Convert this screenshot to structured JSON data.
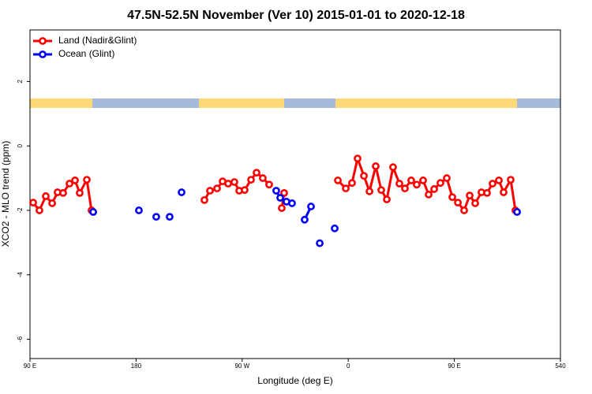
{
  "chart_data": {
    "type": "line",
    "title": "47.5N-52.5N November (Ver 10)   2015-01-01 to 2020-12-18",
    "x_label": "Longitude (deg E)",
    "y_label": "XCO2 - MLO trend (ppm)",
    "xlim": [
      90,
      540
    ],
    "ylim": [
      -6.6,
      3.6
    ],
    "xticks": [
      {
        "value": 90,
        "label": "90 E"
      },
      180,
      {
        "value": 270,
        "label": "90 W"
      },
      {
        "value": 360,
        "label": "0"
      },
      {
        "value": 450,
        "label": "90 E"
      },
      540
    ],
    "yticks": [
      2,
      0,
      -2,
      -4,
      -6
    ],
    "legend": "topleft",
    "series": [
      {
        "name": "Land (Nadir&Glint)",
        "color": "#ff0000",
        "x": [
          92.7,
          98.0,
          103.4,
          108.8,
          113.4,
          118.1,
          123.5,
          128.2,
          132.2,
          138.2,
          142.2,
          null,
          238.0,
          242.7,
          248.7,
          253.4,
          258.1,
          263.4,
          267.5,
          272.1,
          277.5,
          282.2,
          287.5,
          292.9,
          null,
          303.6,
          305.6,
          null,
          351.2,
          357.9,
          363.2,
          367.9,
          373.3,
          378.0,
          383.3,
          388.0,
          392.7,
          398.0,
          403.4,
          408.1,
          413.4,
          418.1,
          423.5,
          428.2,
          432.9,
          438.2,
          443.6,
          448.3,
          453.0,
          458.3,
          463.0,
          467.7,
          473.0,
          477.7,
          482.4,
          487.8,
          491.8,
          497.8,
          501.8
        ],
        "values": [
          -1.76,
          -2.0,
          -1.56,
          -1.78,
          -1.44,
          -1.46,
          -1.17,
          -1.07,
          -1.46,
          -1.05,
          -2.0,
          null,
          -1.68,
          -1.39,
          -1.32,
          -1.1,
          -1.17,
          -1.12,
          -1.39,
          -1.37,
          -1.05,
          -0.83,
          -1.0,
          -1.2,
          null,
          -1.93,
          -1.46,
          null,
          -1.07,
          -1.32,
          -1.15,
          -0.39,
          -0.93,
          -1.41,
          -0.63,
          -1.37,
          -1.66,
          -0.66,
          -1.17,
          -1.32,
          -1.07,
          -1.2,
          -1.07,
          -1.51,
          -1.34,
          -1.15,
          -1.0,
          -1.59,
          -1.76,
          -2.0,
          -1.54,
          -1.78,
          -1.44,
          -1.46,
          -1.17,
          -1.07,
          -1.44,
          -1.05,
          -2.0
        ]
      },
      {
        "name": "Ocean (Glint)",
        "color": "#0000ff",
        "x": [
          143.6,
          null,
          182.4,
          null,
          197.1,
          null,
          208.5,
          null,
          218.6,
          null,
          298.9,
          302.3,
          307.6,
          312.3,
          null,
          323.0,
          328.4,
          null,
          335.8,
          null,
          348.5,
          null,
          503.2
        ],
        "values": [
          -2.05,
          null,
          -2.0,
          null,
          -2.2,
          null,
          -2.2,
          null,
          -1.44,
          null,
          -1.39,
          -1.61,
          -1.73,
          -1.78,
          null,
          -2.29,
          -1.88,
          null,
          -3.02,
          null,
          -2.56,
          null,
          -2.05
        ]
      }
    ]
  }
}
